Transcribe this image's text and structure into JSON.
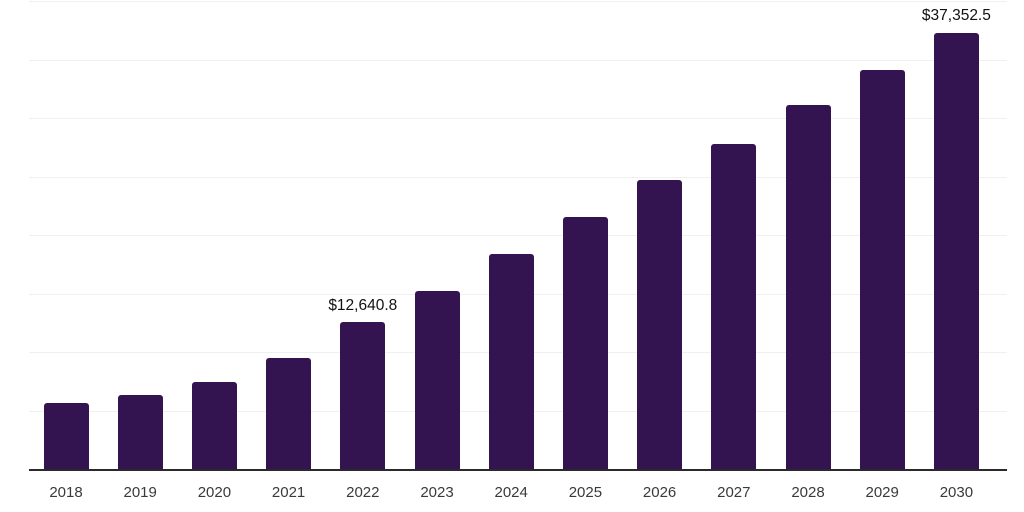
{
  "page": {
    "background": "#ffffff"
  },
  "chart_data": {
    "type": "bar",
    "title": "",
    "xlabel": "",
    "ylabel": "",
    "categories": [
      "2018",
      "2019",
      "2020",
      "2021",
      "2022",
      "2023",
      "2024",
      "2025",
      "2026",
      "2027",
      "2028",
      "2029",
      "2030"
    ],
    "values": [
      5700,
      6400,
      7500,
      9550,
      12640.8,
      15300,
      18450,
      21600,
      24800,
      27900,
      31200,
      34200,
      37352.5
    ],
    "data_labels": {
      "2022": "$12,640.8",
      "2030": "$37,352.5"
    },
    "ylim": [
      0,
      40000
    ],
    "y_grid_step": 5000,
    "grid": "horizontal",
    "legend": "none",
    "y_tick_labels": "none",
    "colors": {
      "bar": "#331450",
      "axis_line": "#2a2a2a",
      "gridline": "#f0f0f0",
      "tick_label": "#3a3a3a",
      "data_label": "#111111"
    }
  }
}
